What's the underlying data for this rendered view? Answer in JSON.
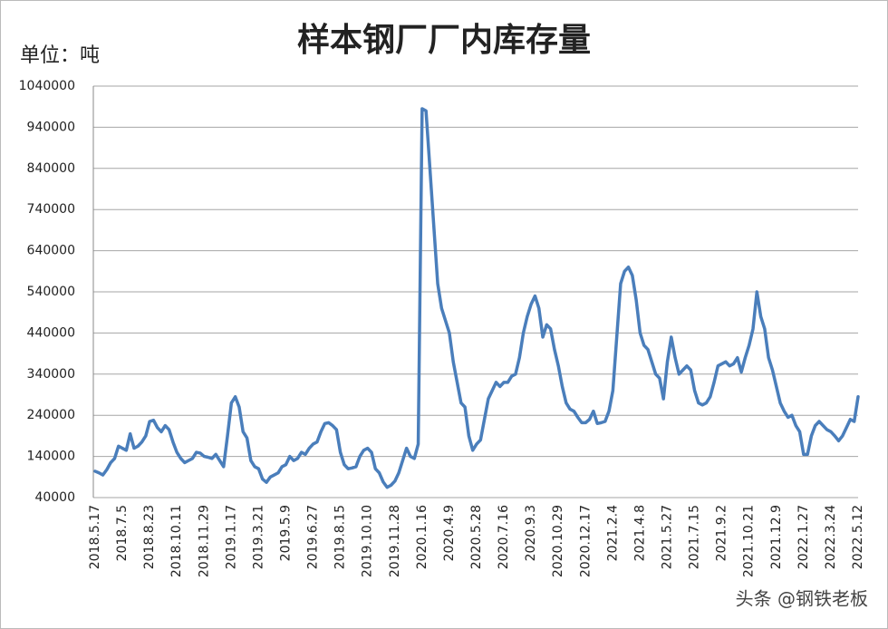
{
  "chart_data": {
    "type": "line",
    "title": "样本钢厂厂内库存量",
    "unit_label": "单位：吨",
    "watermark": "头条 @钢铁老板",
    "color": "#4a7ebb",
    "grid": true,
    "ylim": [
      40000,
      1040000
    ],
    "yticks": [
      40000,
      140000,
      240000,
      340000,
      440000,
      540000,
      640000,
      740000,
      840000,
      940000,
      1040000
    ],
    "categories": [
      "2018.5.17",
      null,
      null,
      null,
      null,
      null,
      null,
      "2018.7.5",
      null,
      null,
      null,
      null,
      null,
      null,
      "2018.8.23",
      null,
      null,
      null,
      null,
      null,
      null,
      "2018.10.11",
      null,
      null,
      null,
      null,
      null,
      null,
      "2018.11.29",
      null,
      null,
      null,
      null,
      null,
      null,
      "2019.1.17",
      null,
      null,
      null,
      null,
      null,
      null,
      "2019.3.21",
      null,
      null,
      null,
      null,
      null,
      null,
      "2019.5.9",
      null,
      null,
      null,
      null,
      null,
      null,
      "2019.6.27",
      null,
      null,
      null,
      null,
      null,
      null,
      "2019.8.15",
      null,
      null,
      null,
      null,
      null,
      null,
      "2019.10.10",
      null,
      null,
      null,
      null,
      null,
      null,
      "2019.11.28",
      null,
      null,
      null,
      null,
      null,
      null,
      "2020.1.16",
      null,
      null,
      null,
      null,
      null,
      null,
      "2020.4.9",
      null,
      null,
      null,
      null,
      null,
      null,
      "2020.5.28",
      null,
      null,
      null,
      null,
      null,
      null,
      "2020.7.16",
      null,
      null,
      null,
      null,
      null,
      null,
      "2020.9.3",
      null,
      null,
      null,
      null,
      null,
      null,
      "2020.10.29",
      null,
      null,
      null,
      null,
      null,
      null,
      "2020.12.17",
      null,
      null,
      null,
      null,
      null,
      null,
      "2021.2.4",
      null,
      null,
      null,
      null,
      null,
      null,
      "2021.4.8",
      null,
      null,
      null,
      null,
      null,
      null,
      "2021.5.27",
      null,
      null,
      null,
      null,
      null,
      null,
      "2021.7.15",
      null,
      null,
      null,
      null,
      null,
      null,
      "2021.9.2",
      null,
      null,
      null,
      null,
      null,
      null,
      "2021.10.21",
      null,
      null,
      null,
      null,
      null,
      null,
      "2021.12.9",
      null,
      null,
      null,
      null,
      null,
      null,
      "2022.1.27",
      null,
      null,
      null,
      null,
      null,
      null,
      "2022.3.24",
      null,
      null,
      null,
      null,
      null,
      null,
      "2022.5.12"
    ],
    "values": [
      104000,
      100000,
      95000,
      108000,
      125000,
      135000,
      165000,
      160000,
      155000,
      195000,
      160000,
      165000,
      175000,
      190000,
      225000,
      228000,
      210000,
      200000,
      215000,
      205000,
      175000,
      150000,
      135000,
      125000,
      130000,
      135000,
      150000,
      148000,
      140000,
      138000,
      135000,
      145000,
      130000,
      115000,
      190000,
      270000,
      285000,
      260000,
      200000,
      185000,
      130000,
      115000,
      110000,
      85000,
      77000,
      90000,
      95000,
      100000,
      115000,
      120000,
      140000,
      130000,
      135000,
      150000,
      145000,
      160000,
      170000,
      175000,
      200000,
      220000,
      222000,
      215000,
      205000,
      150000,
      120000,
      110000,
      112000,
      115000,
      140000,
      155000,
      160000,
      150000,
      110000,
      100000,
      78000,
      65000,
      70000,
      80000,
      100000,
      130000,
      160000,
      140000,
      135000,
      170000,
      985000,
      980000,
      840000,
      700000,
      560000,
      500000,
      470000,
      440000,
      370000,
      320000,
      270000,
      260000,
      190000,
      155000,
      170000,
      180000,
      230000,
      280000,
      300000,
      320000,
      310000,
      320000,
      320000,
      335000,
      340000,
      380000,
      440000,
      480000,
      510000,
      530000,
      500000,
      430000,
      460000,
      450000,
      400000,
      360000,
      310000,
      270000,
      255000,
      250000,
      235000,
      222000,
      222000,
      230000,
      250000,
      220000,
      222000,
      225000,
      250000,
      300000,
      430000,
      560000,
      590000,
      600000,
      580000,
      520000,
      440000,
      410000,
      400000,
      370000,
      340000,
      330000,
      280000,
      370000,
      430000,
      380000,
      340000,
      350000,
      360000,
      350000,
      300000,
      270000,
      265000,
      270000,
      285000,
      320000,
      360000,
      365000,
      370000,
      360000,
      365000,
      380000,
      345000,
      380000,
      410000,
      450000,
      540000,
      480000,
      450000,
      380000,
      350000,
      310000,
      270000,
      250000,
      235000,
      240000,
      215000,
      200000,
      145000,
      145000,
      190000,
      215000,
      225000,
      215000,
      205000,
      200000,
      190000,
      178000,
      190000,
      210000,
      230000,
      225000,
      285000
    ]
  }
}
